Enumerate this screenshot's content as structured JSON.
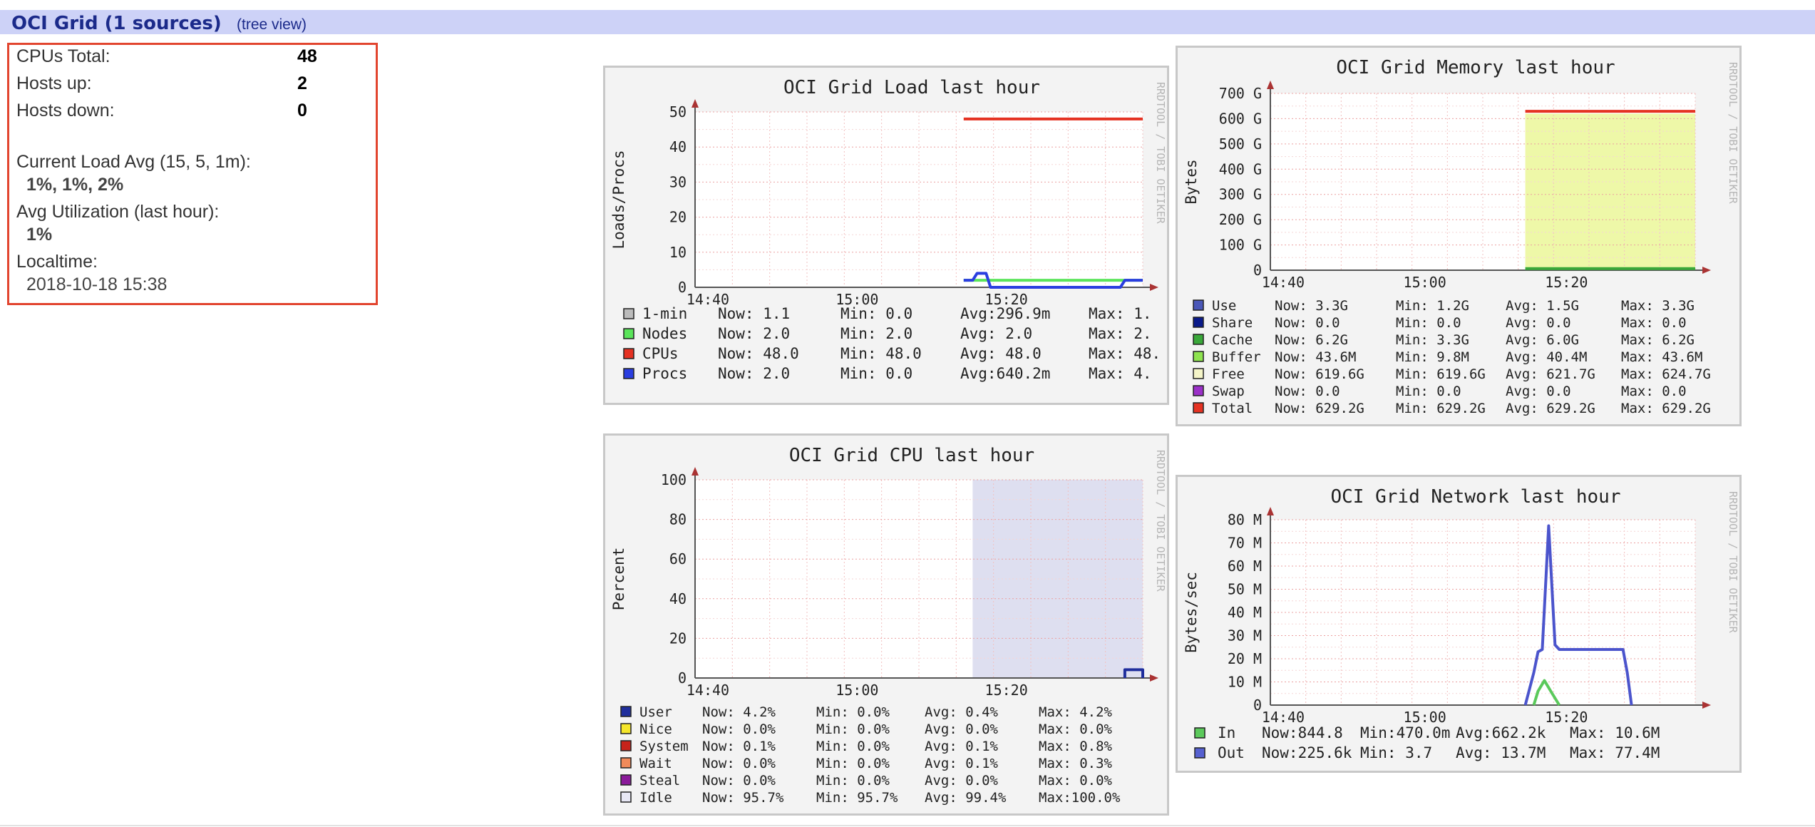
{
  "header": {
    "title": "OCI Grid (1 sources)",
    "tree_link": "(tree view)"
  },
  "summary": {
    "cpus_total_label": "CPUs Total:",
    "cpus_total_value": "48",
    "hosts_up_label": "Hosts up:",
    "hosts_up_value": "2",
    "hosts_down_label": "Hosts down:",
    "hosts_down_value": "0",
    "load_label": "Current Load Avg (15, 5, 1m):",
    "load_value": "1%, 1%, 2%",
    "util_label": "Avg Utilization (last hour):",
    "util_value": "1%",
    "localtime_label": "Localtime:",
    "localtime_value": "2018-10-18 15:38"
  },
  "watermark": "RRDTOOL / TOBI OETIKER",
  "chart_data": [
    {
      "id": "load",
      "type": "line",
      "title": "OCI Grid Load last hour",
      "ylabel": "Loads/Procs",
      "x_ticks": [
        "14:40",
        "15:00",
        "15:20"
      ],
      "y_ticks": [
        "0",
        "10",
        "20",
        "30",
        "40",
        "50"
      ],
      "ylim": [
        0,
        50
      ],
      "legend_rows": [
        {
          "color": "#bbbbbb",
          "name": "1-min",
          "now": "Now:  1.1",
          "min": "Min:  0.0",
          "avg": "Avg:296.9m",
          "max": "Max:  1."
        },
        {
          "color": "#5be55b",
          "name": "Nodes",
          "now": "Now:  2.0",
          "min": "Min:  2.0",
          "avg": "Avg:  2.0",
          "max": "Max:  2."
        },
        {
          "color": "#e53222",
          "name": "CPUs",
          "now": "Now: 48.0",
          "min": "Min: 48.0",
          "avg": "Avg: 48.0",
          "max": "Max: 48."
        },
        {
          "color": "#2a3ee0",
          "name": "Procs",
          "now": "Now:  2.0",
          "min": "Min:  0.0",
          "avg": "Avg:640.2m",
          "max": "Max:  4."
        }
      ],
      "series": [
        {
          "name": "CPUs",
          "color": "#e53222",
          "points": [
            [
              0.6,
              48
            ],
            [
              1.0,
              48
            ]
          ]
        },
        {
          "name": "Nodes",
          "color": "#5be55b",
          "points": [
            [
              0.6,
              2
            ],
            [
              1.0,
              2
            ]
          ]
        },
        {
          "name": "Procs",
          "color": "#2a3ee0",
          "points": [
            [
              0.6,
              2
            ],
            [
              0.62,
              2
            ],
            [
              0.63,
              4
            ],
            [
              0.65,
              4
            ],
            [
              0.66,
              0
            ],
            [
              0.95,
              0
            ],
            [
              0.96,
              2
            ],
            [
              1.0,
              2
            ]
          ]
        }
      ]
    },
    {
      "id": "memory",
      "type": "area",
      "title": "OCI Grid Memory last hour",
      "ylabel": "Bytes",
      "x_ticks": [
        "14:40",
        "15:00",
        "15:20"
      ],
      "y_ticks": [
        "0",
        "100 G",
        "200 G",
        "300 G",
        "400 G",
        "500 G",
        "600 G",
        "700 G"
      ],
      "ylim": [
        0,
        700
      ],
      "legend_rows": [
        {
          "color": "#4a57b8",
          "name": "Use",
          "now": "Now:   3.3G",
          "min": "Min:   1.2G",
          "avg": "Avg:   1.5G",
          "max": "Max:   3.3G"
        },
        {
          "color": "#0a1a8a",
          "name": "Share",
          "now": "Now:   0.0",
          "min": "Min:   0.0",
          "avg": "Avg:   0.0",
          "max": "Max:   0.0"
        },
        {
          "color": "#3aa83a",
          "name": "Cache",
          "now": "Now:   6.2G",
          "min": "Min:   3.3G",
          "avg": "Avg:   6.0G",
          "max": "Max:   6.2G"
        },
        {
          "color": "#8ee34f",
          "name": "Buffer",
          "now": "Now:  43.6M",
          "min": "Min:   9.8M",
          "avg": "Avg:  40.4M",
          "max": "Max:  43.6M"
        },
        {
          "color": "#f5f5c8",
          "name": "Free",
          "now": "Now: 619.6G",
          "min": "Min: 619.6G",
          "avg": "Avg: 621.7G",
          "max": "Max: 624.7G"
        },
        {
          "color": "#9b30c8",
          "name": "Swap",
          "now": "Now:   0.0",
          "min": "Min:   0.0",
          "avg": "Avg:   0.0",
          "max": "Max:   0.0"
        },
        {
          "color": "#e53222",
          "name": "Total",
          "now": "Now: 629.2G",
          "min": "Min: 629.2G",
          "avg": "Avg: 629.2G",
          "max": "Max: 629.2G"
        }
      ],
      "fill": {
        "color": "#eef8a8",
        "from": 0.6,
        "to": 1.0,
        "value": 619.6
      },
      "series": [
        {
          "name": "Total",
          "color": "#e53222",
          "points": [
            [
              0.6,
              629.2
            ],
            [
              1.0,
              629.2
            ]
          ]
        },
        {
          "name": "Cache",
          "color": "#3aa83a",
          "points": [
            [
              0.6,
              6.2
            ],
            [
              1.0,
              6.2
            ]
          ]
        }
      ]
    },
    {
      "id": "cpu",
      "type": "area",
      "title": "OCI Grid CPU last hour",
      "ylabel": "Percent",
      "x_ticks": [
        "14:40",
        "15:00",
        "15:20"
      ],
      "y_ticks": [
        "0",
        "20",
        "40",
        "60",
        "80",
        "100"
      ],
      "ylim": [
        0,
        100
      ],
      "legend_rows": [
        {
          "color": "#1f2e9c",
          "name": "User",
          "now": "Now:  4.2%",
          "min": "Min:  0.0%",
          "avg": "Avg:  0.4%",
          "max": "Max:  4.2%"
        },
        {
          "color": "#f5e62a",
          "name": "Nice",
          "now": "Now:  0.0%",
          "min": "Min:  0.0%",
          "avg": "Avg:  0.0%",
          "max": "Max:  0.0%"
        },
        {
          "color": "#c8231a",
          "name": "System",
          "now": "Now:  0.1%",
          "min": "Min:  0.0%",
          "avg": "Avg:  0.1%",
          "max": "Max:  0.8%"
        },
        {
          "color": "#f08a5a",
          "name": "Wait",
          "now": "Now:  0.0%",
          "min": "Min:  0.0%",
          "avg": "Avg:  0.1%",
          "max": "Max:  0.3%"
        },
        {
          "color": "#8a1a9a",
          "name": "Steal",
          "now": "Now:  0.0%",
          "min": "Min:  0.0%",
          "avg": "Avg:  0.0%",
          "max": "Max:  0.0%"
        },
        {
          "color": "#e8e8f5",
          "name": "Idle",
          "now": "Now: 95.7%",
          "min": "Min: 95.7%",
          "avg": "Avg: 99.4%",
          "max": "Max:100.0%"
        }
      ],
      "fill": {
        "color": "#dedff0",
        "from": 0.62,
        "to": 1.0,
        "value": 100
      },
      "series": [
        {
          "name": "User",
          "color": "#1f2e9c",
          "points": [
            [
              0.96,
              0
            ],
            [
              0.96,
              4.2
            ],
            [
              1.0,
              4.2
            ],
            [
              1.0,
              0
            ]
          ]
        }
      ]
    },
    {
      "id": "network",
      "type": "line",
      "title": "OCI Grid Network last hour",
      "ylabel": "Bytes/sec",
      "x_ticks": [
        "14:40",
        "15:00",
        "15:20"
      ],
      "y_ticks": [
        "0",
        "10 M",
        "20 M",
        "30 M",
        "40 M",
        "50 M",
        "60 M",
        "70 M",
        "80 M"
      ],
      "ylim": [
        0,
        80
      ],
      "legend_rows": [
        {
          "color": "#5bc95b",
          "name": "In",
          "now": "Now:844.8",
          "min": "Min:470.0m",
          "avg": "Avg:662.2k",
          "max": "Max: 10.6M"
        },
        {
          "color": "#5560d0",
          "name": "Out",
          "now": "Now:225.6k",
          "min": "Min:  3.7",
          "avg": "Avg: 13.7M",
          "max": "Max: 77.4M"
        }
      ],
      "series": [
        {
          "name": "Out",
          "color": "#4b54cc",
          "points": [
            [
              0.6,
              0
            ],
            [
              0.62,
              14
            ],
            [
              0.63,
              23
            ],
            [
              0.64,
              24
            ],
            [
              0.655,
              77.4
            ],
            [
              0.67,
              26
            ],
            [
              0.68,
              24
            ],
            [
              0.83,
              24
            ],
            [
              0.84,
              14
            ],
            [
              0.85,
              0
            ]
          ]
        },
        {
          "name": "In",
          "color": "#5bc95b",
          "points": [
            [
              0.62,
              0
            ],
            [
              0.63,
              6
            ],
            [
              0.645,
              10.6
            ],
            [
              0.66,
              6
            ],
            [
              0.67,
              3
            ],
            [
              0.68,
              0
            ]
          ]
        }
      ]
    }
  ]
}
